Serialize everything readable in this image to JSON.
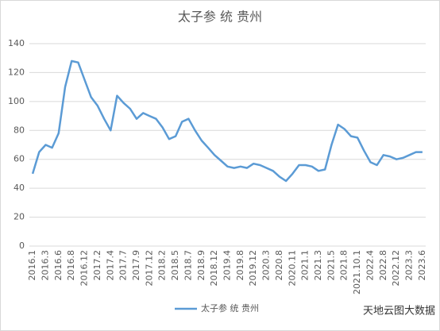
{
  "chart_data": {
    "type": "line",
    "title": "太子参 统 贵州",
    "categories": [
      "2016.1",
      null,
      "2016.3",
      null,
      "2016.6",
      null,
      "2016.8",
      null,
      "2016.12",
      null,
      "2017.2",
      null,
      "2017.4",
      null,
      "2017.7",
      null,
      "2017.9",
      null,
      "2017.12",
      null,
      "2018.2",
      null,
      "2018.5",
      null,
      "2018.7",
      null,
      "2018.9",
      null,
      "2018.12",
      null,
      "2019.4",
      null,
      "2019.8",
      null,
      "2019.12",
      null,
      "2020.3",
      null,
      "2020.8",
      null,
      "2020.11",
      null,
      "2021.1",
      null,
      "2021.3",
      null,
      "2021.5",
      null,
      "2021.8",
      null,
      "2021.10.1",
      null,
      "2022.4",
      null,
      "2022.8",
      null,
      "2022.12",
      null,
      "2023.3",
      null,
      "2023.6"
    ],
    "series": [
      {
        "name": "太子参 统 贵州",
        "color": "#5b9bd5",
        "values": [
          50,
          65,
          70,
          68,
          78,
          110,
          128,
          127,
          115,
          103,
          97,
          88,
          80,
          104,
          99,
          95,
          88,
          92,
          90,
          88,
          82,
          74,
          76,
          86,
          88,
          80,
          73,
          68,
          63,
          59,
          55,
          54,
          55,
          54,
          57,
          56,
          54,
          52,
          48,
          45,
          50,
          56,
          56,
          55,
          52,
          53,
          70,
          84,
          81,
          76,
          75,
          66,
          58,
          56,
          63,
          62,
          60,
          61,
          63,
          65,
          65
        ]
      }
    ],
    "ylim": [
      0,
      140
    ],
    "yticks": [
      0,
      20,
      40,
      60,
      80,
      100,
      120,
      140
    ],
    "grid": true,
    "legend": "bottom",
    "watermark": "天地云图大数据"
  }
}
